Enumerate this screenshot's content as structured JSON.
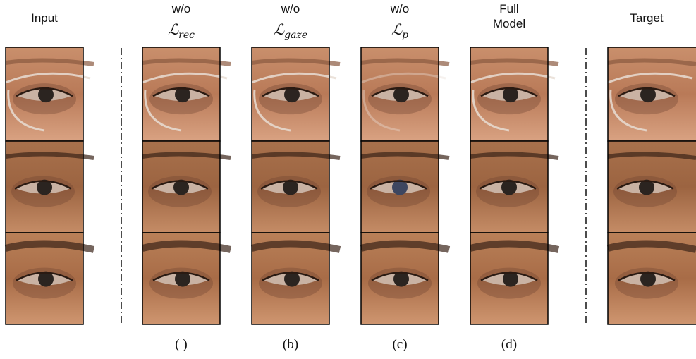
{
  "columns": [
    {
      "header_lines": [
        "Input"
      ]
    },
    {
      "header_lines": [
        "w/o"
      ],
      "math": {
        "symbol": "ℒ",
        "subscript": "rec"
      },
      "caption": "( )"
    },
    {
      "header_lines": [
        "w/o"
      ],
      "math": {
        "symbol": "ℒ",
        "subscript": "gaze"
      },
      "caption": "(b)"
    },
    {
      "header_lines": [
        "w/o"
      ],
      "math": {
        "symbol": "ℒ",
        "subscript": "p"
      },
      "caption": "(c)"
    },
    {
      "header_lines": [
        "Full",
        "Model"
      ],
      "caption": "(d)"
    },
    {
      "header_lines": [
        "Target"
      ]
    }
  ]
}
